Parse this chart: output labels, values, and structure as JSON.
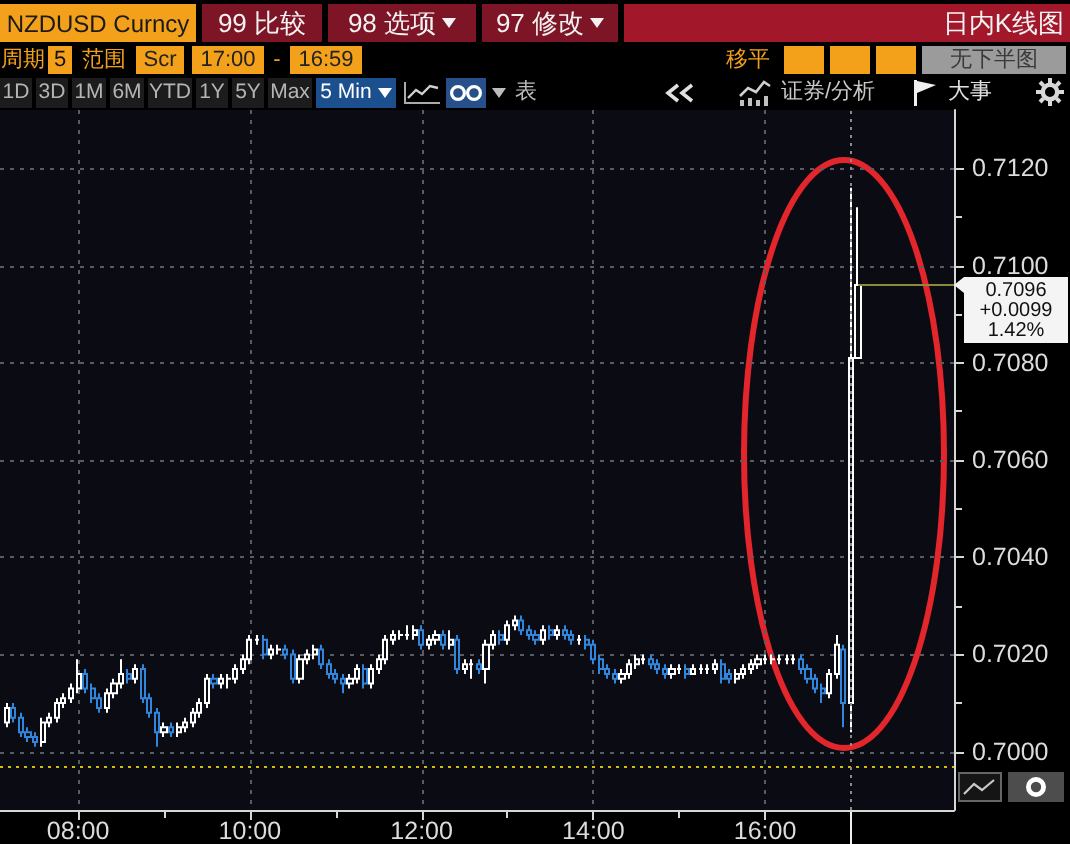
{
  "chart_data": {
    "type": "candlestick",
    "title": "NZDUSD Curncy",
    "x": [
      7.167,
      7.25,
      7.333,
      7.417,
      7.5,
      7.583,
      7.667,
      7.75,
      7.833,
      7.917,
      8,
      8.083,
      8.167,
      8.25,
      8.333,
      8.417,
      8.5,
      8.583,
      8.667,
      8.75,
      8.833,
      8.917,
      9,
      9.083,
      9.167,
      9.25,
      9.333,
      9.417,
      9.5,
      9.583,
      9.667,
      9.75,
      9.833,
      9.917,
      10,
      10.083,
      10.167,
      10.25,
      10.333,
      10.417,
      10.5,
      10.583,
      10.667,
      10.75,
      10.833,
      10.917,
      11,
      11.083,
      11.167,
      11.25,
      11.333,
      11.417,
      11.5,
      11.583,
      11.667,
      11.75,
      11.833,
      11.917,
      12,
      12.083,
      12.167,
      12.25,
      12.333,
      12.417,
      12.5,
      12.583,
      12.667,
      12.75,
      12.833,
      12.917,
      13,
      13.083,
      13.167,
      13.25,
      13.333,
      13.417,
      13.5,
      13.583,
      13.667,
      13.75,
      13.833,
      13.917,
      14,
      14.083,
      14.167,
      14.25,
      14.333,
      14.417,
      14.5,
      14.583,
      14.667,
      14.75,
      14.833,
      14.917,
      15,
      15.083,
      15.167,
      15.25,
      15.333,
      15.417,
      15.5,
      15.583,
      15.667,
      15.75,
      15.833,
      15.917,
      16,
      16.083,
      16.167,
      16.25,
      16.333,
      16.417,
      16.5,
      16.583,
      16.667,
      16.75,
      16.833,
      16.917,
      17,
      17.083
    ],
    "ohlc": [
      [
        0.7006,
        0.701,
        0.7005,
        0.7009
      ],
      [
        0.7009,
        0.701,
        0.7006,
        0.7007
      ],
      [
        0.7007,
        0.7008,
        0.7003,
        0.7004
      ],
      [
        0.7004,
        0.7005,
        0.7002,
        0.7003
      ],
      [
        0.7003,
        0.7004,
        0.7001,
        0.7002
      ],
      [
        0.7002,
        0.7007,
        0.7001,
        0.7006
      ],
      [
        0.7006,
        0.7008,
        0.7005,
        0.7007
      ],
      [
        0.7007,
        0.7011,
        0.7006,
        0.701
      ],
      [
        0.701,
        0.7012,
        0.7009,
        0.7011
      ],
      [
        0.7011,
        0.7014,
        0.701,
        0.7013
      ],
      [
        0.7013,
        0.7019,
        0.7012,
        0.7016
      ],
      [
        0.7016,
        0.7017,
        0.7012,
        0.7013
      ],
      [
        0.7013,
        0.7014,
        0.701,
        0.7011
      ],
      [
        0.7011,
        0.7012,
        0.7008,
        0.7009
      ],
      [
        0.7009,
        0.7013,
        0.7008,
        0.7012
      ],
      [
        0.7012,
        0.7015,
        0.7011,
        0.7014
      ],
      [
        0.7014,
        0.7019,
        0.7013,
        0.7016
      ],
      [
        0.7016,
        0.7017,
        0.7014,
        0.7015
      ],
      [
        0.7015,
        0.7018,
        0.7014,
        0.7017
      ],
      [
        0.7017,
        0.7018,
        0.701,
        0.7011
      ],
      [
        0.7011,
        0.7012,
        0.7007,
        0.7008
      ],
      [
        0.7008,
        0.7009,
        0.7001,
        0.7004
      ],
      [
        0.7004,
        0.7006,
        0.7003,
        0.7005
      ],
      [
        0.7005,
        0.7006,
        0.7003,
        0.7004
      ],
      [
        0.7004,
        0.7006,
        0.7003,
        0.7005
      ],
      [
        0.7005,
        0.7007,
        0.7004,
        0.7006
      ],
      [
        0.7006,
        0.7009,
        0.7005,
        0.7008
      ],
      [
        0.7008,
        0.7011,
        0.7007,
        0.701
      ],
      [
        0.701,
        0.7016,
        0.7009,
        0.7015
      ],
      [
        0.7015,
        0.7016,
        0.7013,
        0.7014
      ],
      [
        0.7014,
        0.7016,
        0.7013,
        0.7015
      ],
      [
        0.7015,
        0.7016,
        0.7013,
        0.7015
      ],
      [
        0.7015,
        0.7018,
        0.7014,
        0.7017
      ],
      [
        0.7017,
        0.702,
        0.7016,
        0.7019
      ],
      [
        0.7019,
        0.7024,
        0.7018,
        0.7023
      ],
      [
        0.7023,
        0.7024,
        0.7022,
        0.7023
      ],
      [
        0.7023,
        0.7024,
        0.7019,
        0.702
      ],
      [
        0.702,
        0.7022,
        0.7019,
        0.7021
      ],
      [
        0.7021,
        0.7022,
        0.702,
        0.7021
      ],
      [
        0.7021,
        0.7022,
        0.7019,
        0.702
      ],
      [
        0.702,
        0.7021,
        0.7014,
        0.7015
      ],
      [
        0.7015,
        0.702,
        0.7014,
        0.7019
      ],
      [
        0.7019,
        0.7021,
        0.7018,
        0.702
      ],
      [
        0.702,
        0.7022,
        0.7019,
        0.7021
      ],
      [
        0.7021,
        0.7022,
        0.7017,
        0.7018
      ],
      [
        0.7018,
        0.7019,
        0.7015,
        0.7016
      ],
      [
        0.7016,
        0.7017,
        0.7014,
        0.7015
      ],
      [
        0.7015,
        0.7016,
        0.7012,
        0.7014
      ],
      [
        0.7014,
        0.7016,
        0.7013,
        0.7015
      ],
      [
        0.7015,
        0.7018,
        0.7014,
        0.7017
      ],
      [
        0.7017,
        0.7018,
        0.7013,
        0.7014
      ],
      [
        0.7014,
        0.7018,
        0.7013,
        0.7017
      ],
      [
        0.7017,
        0.702,
        0.7016,
        0.7019
      ],
      [
        0.7019,
        0.7024,
        0.7018,
        0.7023
      ],
      [
        0.7023,
        0.7025,
        0.7022,
        0.7024
      ],
      [
        0.7024,
        0.7025,
        0.7023,
        0.7024
      ],
      [
        0.7024,
        0.7026,
        0.7023,
        0.7024
      ],
      [
        0.7024,
        0.7026,
        0.7023,
        0.7025
      ],
      [
        0.7025,
        0.7026,
        0.7021,
        0.7022
      ],
      [
        0.7022,
        0.7024,
        0.7021,
        0.7023
      ],
      [
        0.7023,
        0.7025,
        0.7022,
        0.7024
      ],
      [
        0.7024,
        0.7025,
        0.7021,
        0.7022
      ],
      [
        0.7022,
        0.7025,
        0.7021,
        0.7023
      ],
      [
        0.7023,
        0.7024,
        0.7016,
        0.7017
      ],
      [
        0.7017,
        0.7019,
        0.7016,
        0.7018
      ],
      [
        0.7018,
        0.7019,
        0.7015,
        0.7018
      ],
      [
        0.7018,
        0.7019,
        0.7016,
        0.7017
      ],
      [
        0.7017,
        0.7023,
        0.7014,
        0.7022
      ],
      [
        0.7022,
        0.7025,
        0.7021,
        0.7024
      ],
      [
        0.7024,
        0.7025,
        0.7022,
        0.7023
      ],
      [
        0.7023,
        0.7027,
        0.7022,
        0.7026
      ],
      [
        0.7026,
        0.7028,
        0.7025,
        0.7027
      ],
      [
        0.7027,
        0.7028,
        0.7024,
        0.7025
      ],
      [
        0.7025,
        0.7026,
        0.7023,
        0.7024
      ],
      [
        0.7024,
        0.7025,
        0.7022,
        0.7023
      ],
      [
        0.7023,
        0.7026,
        0.7022,
        0.7025
      ],
      [
        0.7025,
        0.7026,
        0.7023,
        0.7024
      ],
      [
        0.7024,
        0.7026,
        0.7023,
        0.7025
      ],
      [
        0.7025,
        0.7026,
        0.7023,
        0.7024
      ],
      [
        0.7024,
        0.7025,
        0.7022,
        0.7023
      ],
      [
        0.7023,
        0.7024,
        0.7022,
        0.7023
      ],
      [
        0.7023,
        0.7024,
        0.7021,
        0.7022
      ],
      [
        0.7022,
        0.7023,
        0.7018,
        0.7019
      ],
      [
        0.7019,
        0.702,
        0.7016,
        0.7017
      ],
      [
        0.7017,
        0.7018,
        0.7015,
        0.7016
      ],
      [
        0.7016,
        0.7017,
        0.7014,
        0.7015
      ],
      [
        0.7015,
        0.7017,
        0.7014,
        0.7016
      ],
      [
        0.7016,
        0.7019,
        0.7015,
        0.7018
      ],
      [
        0.7018,
        0.702,
        0.7017,
        0.7019
      ],
      [
        0.7019,
        0.702,
        0.7018,
        0.7019
      ],
      [
        0.7019,
        0.702,
        0.7017,
        0.7018
      ],
      [
        0.7018,
        0.7019,
        0.7016,
        0.7017
      ],
      [
        0.7017,
        0.7018,
        0.7015,
        0.7016
      ],
      [
        0.7016,
        0.7018,
        0.7015,
        0.7017
      ],
      [
        0.7017,
        0.7018,
        0.7016,
        0.7017
      ],
      [
        0.7017,
        0.7018,
        0.7015,
        0.7016
      ],
      [
        0.7016,
        0.7018,
        0.7016,
        0.7017
      ],
      [
        0.7017,
        0.7018,
        0.7016,
        0.7017
      ],
      [
        0.7017,
        0.7018,
        0.7016,
        0.7017
      ],
      [
        0.7017,
        0.7019,
        0.7016,
        0.7018
      ],
      [
        0.7018,
        0.7019,
        0.7014,
        0.7015
      ],
      [
        0.7016,
        0.7017,
        0.7014,
        0.7015
      ],
      [
        0.7015,
        0.7017,
        0.7014,
        0.7016
      ],
      [
        0.7016,
        0.7018,
        0.7015,
        0.7017
      ],
      [
        0.7017,
        0.7019,
        0.7016,
        0.7018
      ],
      [
        0.7018,
        0.702,
        0.7017,
        0.7019
      ],
      [
        0.7019,
        0.702,
        0.7018,
        0.7019
      ],
      [
        0.7019,
        0.702,
        0.7018,
        0.7019
      ],
      [
        0.7019,
        0.702,
        0.7018,
        0.7019
      ],
      [
        0.7019,
        0.702,
        0.7018,
        0.7019
      ],
      [
        0.7019,
        0.702,
        0.7018,
        0.7019
      ],
      [
        0.7019,
        0.702,
        0.7016,
        0.7017
      ],
      [
        0.7017,
        0.7018,
        0.7014,
        0.7015
      ],
      [
        0.7015,
        0.7016,
        0.7012,
        0.7013
      ],
      [
        0.7013,
        0.7014,
        0.701,
        0.7012
      ],
      [
        0.7012,
        0.7017,
        0.7011,
        0.7016
      ],
      [
        0.7016,
        0.7024,
        0.7015,
        0.7022
      ],
      [
        0.7021,
        0.7022,
        0.7005,
        0.701
      ],
      [
        0.701,
        0.7116,
        0.7004,
        0.7081
      ],
      [
        0.7081,
        0.7112,
        0.7081,
        0.7096
      ]
    ],
    "colors": [
      "#ffffff",
      "#2f86dc",
      "#2f86dc",
      "#2f86dc",
      "#2f86dc",
      "#ffffff",
      "#ffffff",
      "#ffffff",
      "#ffffff",
      "#ffffff",
      "#ffffff",
      "#2f86dc",
      "#2f86dc",
      "#2f86dc",
      "#ffffff",
      "#ffffff",
      "#ffffff",
      "#2f86dc",
      "#ffffff",
      "#2f86dc",
      "#2f86dc",
      "#2f86dc",
      "#ffffff",
      "#2f86dc",
      "#ffffff",
      "#ffffff",
      "#ffffff",
      "#ffffff",
      "#ffffff",
      "#2f86dc",
      "#ffffff",
      "#ffffff",
      "#ffffff",
      "#ffffff",
      "#ffffff",
      "#ffffff",
      "#2f86dc",
      "#ffffff",
      "#ffffff",
      "#2f86dc",
      "#2f86dc",
      "#ffffff",
      "#ffffff",
      "#ffffff",
      "#2f86dc",
      "#2f86dc",
      "#2f86dc",
      "#2f86dc",
      "#ffffff",
      "#ffffff",
      "#2f86dc",
      "#ffffff",
      "#ffffff",
      "#ffffff",
      "#ffffff",
      "#ffffff",
      "#ffffff",
      "#ffffff",
      "#2f86dc",
      "#ffffff",
      "#ffffff",
      "#2f86dc",
      "#ffffff",
      "#2f86dc",
      "#ffffff",
      "#ffffff",
      "#2f86dc",
      "#ffffff",
      "#ffffff",
      "#2f86dc",
      "#ffffff",
      "#ffffff",
      "#2f86dc",
      "#2f86dc",
      "#2f86dc",
      "#ffffff",
      "#2f86dc",
      "#ffffff",
      "#2f86dc",
      "#2f86dc",
      "#ffffff",
      "#2f86dc",
      "#2f86dc",
      "#2f86dc",
      "#2f86dc",
      "#2f86dc",
      "#ffffff",
      "#ffffff",
      "#ffffff",
      "#ffffff",
      "#2f86dc",
      "#2f86dc",
      "#2f86dc",
      "#ffffff",
      "#ffffff",
      "#2f86dc",
      "#ffffff",
      "#ffffff",
      "#ffffff",
      "#ffffff",
      "#2f86dc",
      "#2f86dc",
      "#ffffff",
      "#ffffff",
      "#ffffff",
      "#ffffff",
      "#ffffff",
      "#ffffff",
      "#ffffff",
      "#ffffff",
      "#ffffff",
      "#2f86dc",
      "#2f86dc",
      "#2f86dc",
      "#2f86dc",
      "#ffffff",
      "#ffffff",
      "#2f86dc",
      "#ffffff",
      "#ffffff"
    ],
    "xlim": [
      7.09,
      18.2
    ],
    "xticks": [
      {
        "value": 8,
        "label": "08:00"
      },
      {
        "value": 9,
        "label": null
      },
      {
        "value": 10,
        "label": "10:00"
      },
      {
        "value": 11,
        "label": null
      },
      {
        "value": 12,
        "label": "12:00"
      },
      {
        "value": 13,
        "label": null
      },
      {
        "value": 14,
        "label": "14:00"
      },
      {
        "value": 15,
        "label": null
      },
      {
        "value": 16,
        "label": "16:00"
      },
      {
        "value": 17,
        "label": null
      }
    ],
    "ylim": [
      0.6988,
      0.7132
    ],
    "yticks": [
      {
        "value": 0.7,
        "label": "0.7000"
      },
      {
        "value": 0.701,
        "label": null
      },
      {
        "value": 0.702,
        "label": "0.7020"
      },
      {
        "value": 0.703,
        "label": null
      },
      {
        "value": 0.704,
        "label": "0.7040"
      },
      {
        "value": 0.705,
        "label": null
      },
      {
        "value": 0.706,
        "label": "0.7060"
      },
      {
        "value": 0.707,
        "label": null
      },
      {
        "value": 0.708,
        "label": "0.7080"
      },
      {
        "value": 0.709,
        "label": null
      },
      {
        "value": 0.71,
        "label": "0.7100"
      },
      {
        "value": 0.711,
        "label": null
      },
      {
        "value": 0.712,
        "label": "0.7120"
      }
    ],
    "grid": true,
    "ref_lines": [
      {
        "axis": "y",
        "value": 0.6997,
        "color": "#d9bb00",
        "line_style": "dotted"
      },
      {
        "axis": "y",
        "value": 0.7096,
        "label": "0.7096\n+0.0099\n1.42%",
        "color": "#8c8a3a"
      },
      {
        "axis": "x",
        "value": 17,
        "color": "#8a8a8a",
        "line_style": "dotted"
      }
    ],
    "annotations": [
      "99 比较",
      "98 选项",
      "97 修改",
      "日内K线图",
      "周期",
      "5",
      "范围",
      "Scr",
      "17:00",
      "-",
      "16:59",
      "移平",
      "无下半图",
      "1D",
      "3D",
      "1M",
      "6M",
      "YTD",
      "1Y",
      "5Y",
      "Max",
      "5 Min",
      "表",
      "证券/分析",
      "大事"
    ]
  }
}
